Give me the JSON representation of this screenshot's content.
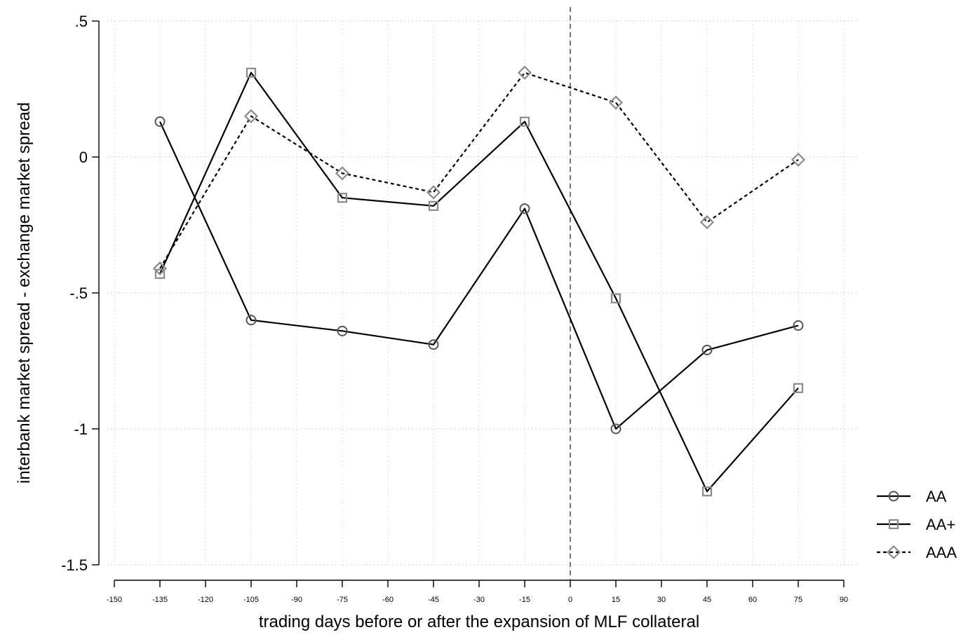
{
  "chart_data": {
    "type": "line",
    "title": "",
    "xlabel": "trading days before or after the expansion of MLF collateral",
    "ylabel": "interbank market spread - exchange market spread",
    "xlim": [
      -150,
      90
    ],
    "ylim": [
      -1.5,
      0.5
    ],
    "x_ticks": [
      -150,
      -135,
      -120,
      -105,
      -90,
      -75,
      -60,
      -45,
      -30,
      -15,
      0,
      15,
      30,
      45,
      60,
      75,
      90
    ],
    "y_ticks": [
      {
        "value": 0.5,
        "label": ".5"
      },
      {
        "value": 0,
        "label": "0"
      },
      {
        "value": -0.5,
        "label": "-.5"
      },
      {
        "value": -1,
        "label": "-1"
      },
      {
        "value": -1.5,
        "label": "-1.5"
      }
    ],
    "grid": true,
    "vertical_reference_line": 0,
    "legend_position": "right-bottom",
    "series": [
      {
        "name": "AA",
        "marker": "circle",
        "line": "solid",
        "color": "#000000",
        "marker_color": "#555555",
        "x": [
          -135,
          -105,
          -75,
          -45,
          -15,
          15,
          45,
          75
        ],
        "values": [
          0.13,
          -0.6,
          -0.64,
          -0.69,
          -0.19,
          -1.0,
          -0.71,
          -0.62
        ]
      },
      {
        "name": "AA+",
        "marker": "square",
        "line": "solid",
        "color": "#000000",
        "marker_color": "#8a8a8a",
        "x": [
          -135,
          -105,
          -75,
          -45,
          -15,
          15,
          45,
          75
        ],
        "values": [
          -0.43,
          0.31,
          -0.15,
          -0.18,
          0.13,
          -0.52,
          -1.23,
          -0.85
        ]
      },
      {
        "name": "AAA",
        "marker": "diamond",
        "line": "dashed",
        "color": "#000000",
        "marker_color": "#8a8a8a",
        "x": [
          -135,
          -105,
          -75,
          -45,
          -15,
          15,
          45,
          75
        ],
        "values": [
          -0.41,
          0.15,
          -0.06,
          -0.13,
          0.31,
          0.2,
          -0.24,
          -0.01
        ]
      }
    ]
  }
}
